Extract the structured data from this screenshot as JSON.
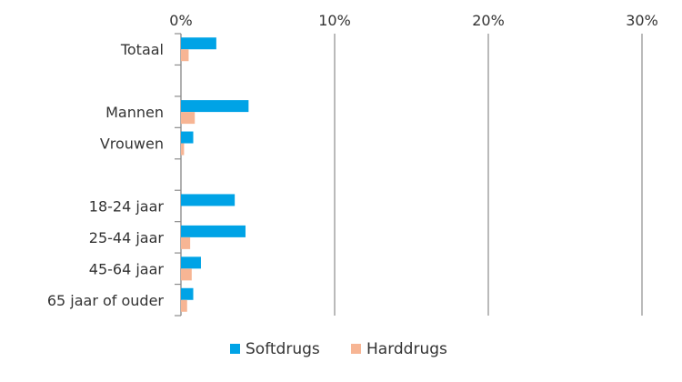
{
  "chart_data": {
    "type": "bar",
    "orientation": "horizontal",
    "categories": [
      "Totaal",
      "",
      "Mannen",
      "Vrouwen",
      "",
      "18-24 jaar",
      "25-44 jaar",
      "45-64 jaar",
      "65 jaar of ouder"
    ],
    "series": [
      {
        "name": "Softdrugs",
        "color": "#00A3E6",
        "values": [
          2.3,
          null,
          4.4,
          0.8,
          null,
          3.5,
          4.2,
          1.3,
          0.8
        ]
      },
      {
        "name": "Harddrugs",
        "color": "#F7B594",
        "values": [
          0.5,
          null,
          0.9,
          0.2,
          null,
          0.0,
          0.6,
          0.7,
          0.4
        ]
      }
    ],
    "xlim": [
      0,
      30
    ],
    "x_ticks": [
      "0%",
      "10%",
      "20%",
      "30%"
    ],
    "x_tick_values": [
      0,
      10,
      20,
      30
    ],
    "x_axis_position": "top",
    "grid": true,
    "legend_position": "bottom",
    "title": "",
    "xlabel": "",
    "ylabel": ""
  }
}
